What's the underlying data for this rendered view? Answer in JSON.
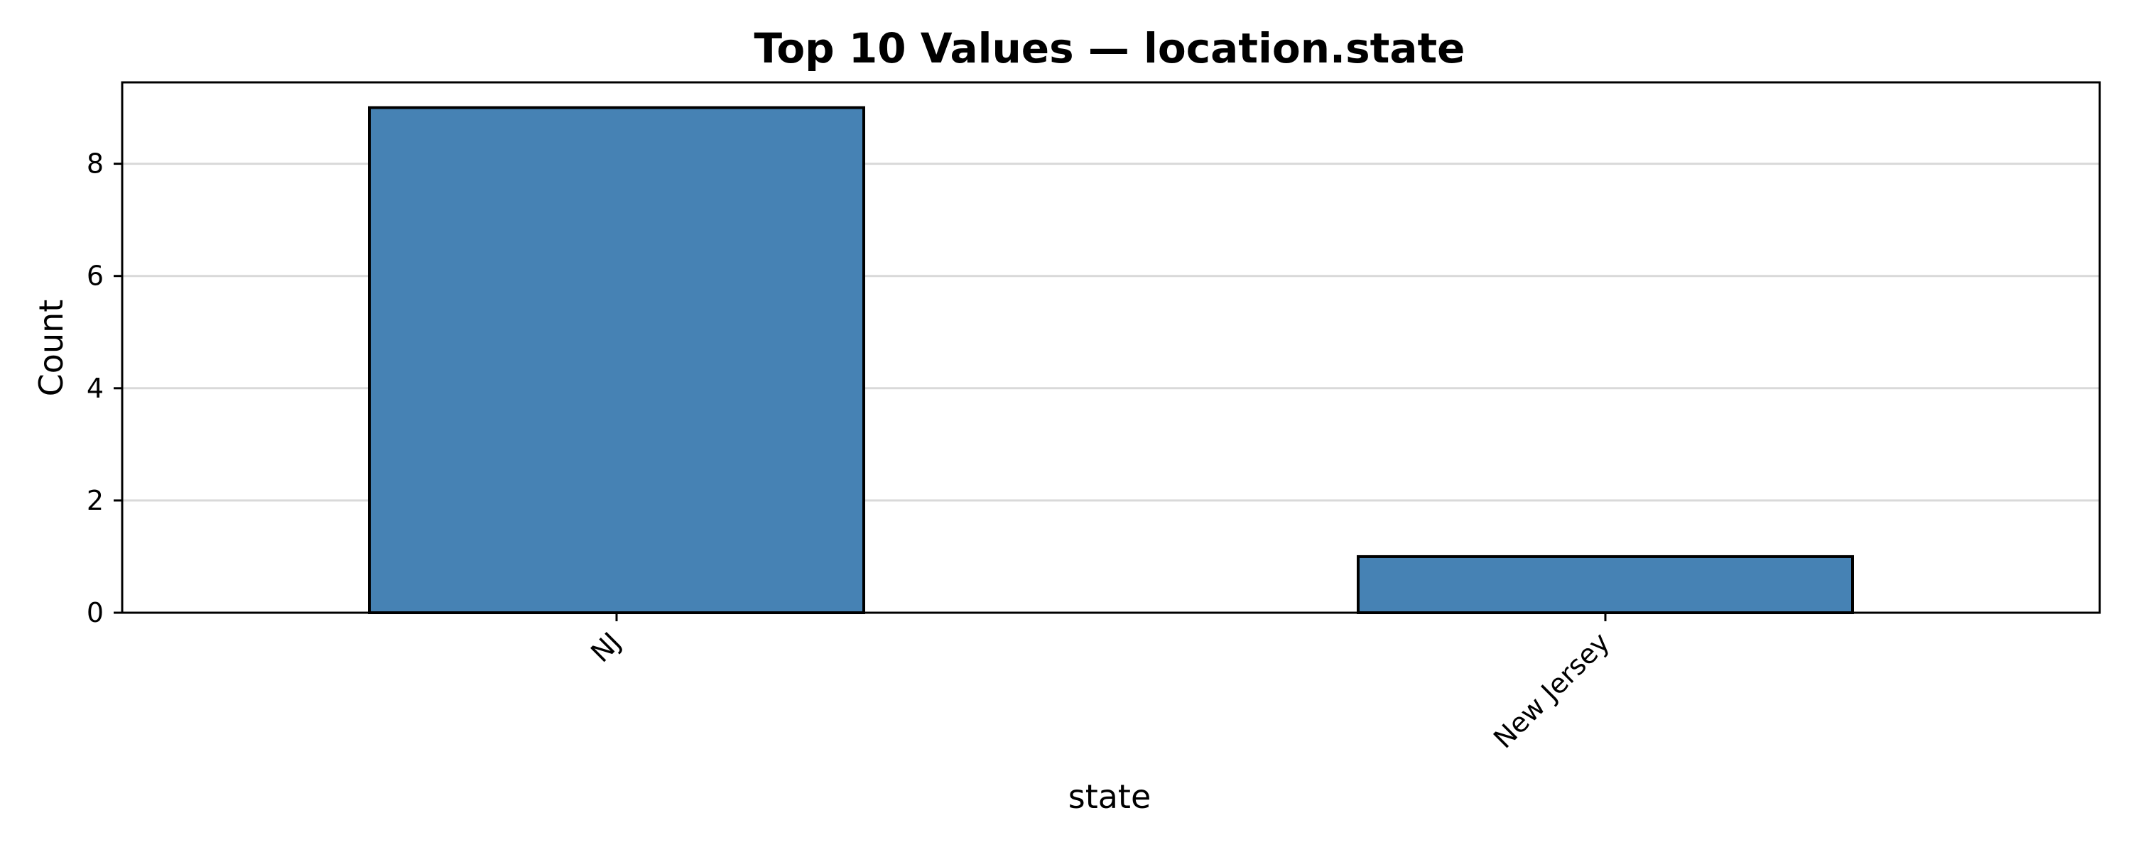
{
  "chart_data": {
    "type": "bar",
    "title": "Top 10 Values — location.state",
    "xlabel": "state",
    "ylabel": "Count",
    "categories": [
      "NJ",
      "New Jersey"
    ],
    "values": [
      9,
      1
    ],
    "ylim": [
      0,
      9.45
    ],
    "yticks": [
      0,
      2,
      4,
      6,
      8
    ],
    "grid": "y",
    "bar_color": "#4682b4",
    "edge_color": "#000000"
  }
}
